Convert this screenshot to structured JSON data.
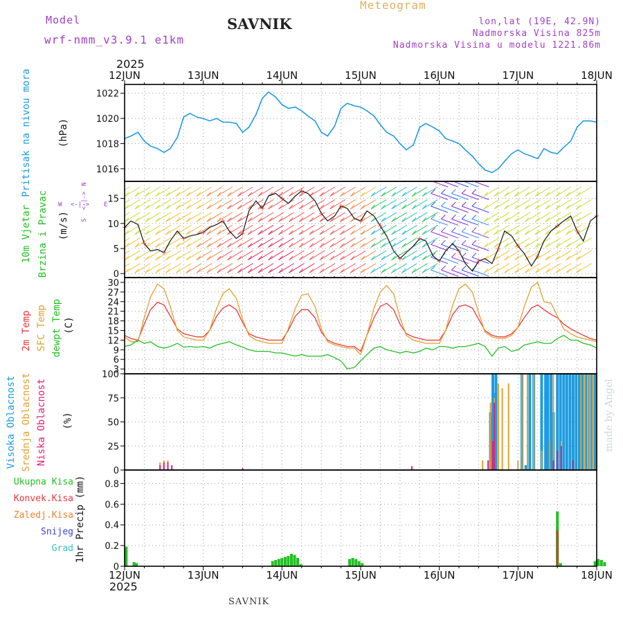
{
  "header": {
    "model_label": "Model",
    "model_name": "wrf-nmm_v3.9.1 e1km",
    "station": "SAVNIK",
    "title": "Meteogram",
    "coords": "lon,lat (19E, 42.9N)",
    "elevation": "Nadmorska Visina 825m",
    "model_elevation": "Nadmorska Visina u modelu 1221.86m",
    "year_top": "2025",
    "year_bottom": "2025",
    "footer_station": "SAVNIK",
    "credit": "made by Angel"
  },
  "colors": {
    "pressure": "#1e9be0",
    "temp2m": "#e8393b",
    "sfc_temp": "#e0a030",
    "dewpt": "#22c022",
    "high_cloud": "#1e9be0",
    "mid_cloud": "#e0a030",
    "low_cloud": "#e0207a",
    "total_precip": "#22c022",
    "conv_precip": "#e8393b",
    "frozen_precip": "#f08030",
    "snow": "#4040e0",
    "hail": "#30c0c0",
    "purple_text": "#a040c8",
    "meteogram": "#e0b060"
  },
  "chart_data": {
    "type": "line",
    "x_axis": {
      "ticks": [
        "12JUN",
        "13JUN",
        "14JUN",
        "15JUN",
        "16JUN",
        "17JUN",
        "18JUN"
      ]
    },
    "panels": {
      "pressure": {
        "label": "Pritisak na nivou mora",
        "unit": "(hPa)",
        "ylim": [
          1015,
          1022.7
        ],
        "yticks": [
          1016,
          1018,
          1020,
          1022
        ],
        "series": [
          {
            "name": "Pritisak na nivou mora",
            "x_days": [
              0,
              0.08,
              0.17,
              0.25,
              0.33,
              0.42,
              0.5,
              0.58,
              0.67,
              0.75,
              0.83,
              0.92,
              1.0,
              1.08,
              1.17,
              1.25,
              1.33,
              1.42,
              1.5,
              1.58,
              1.67,
              1.75,
              1.83,
              1.92,
              2.0,
              2.08,
              2.17,
              2.25,
              2.33,
              2.42,
              2.5,
              2.58,
              2.67,
              2.75,
              2.83,
              2.92,
              3.0,
              3.08,
              3.17,
              3.25,
              3.33,
              3.42,
              3.5,
              3.58,
              3.67,
              3.75,
              3.83,
              3.92,
              4.0,
              4.08,
              4.17,
              4.25,
              4.33,
              4.42,
              4.5,
              4.58,
              4.67,
              4.75,
              4.83,
              4.92,
              5.0,
              5.08,
              5.17,
              5.25,
              5.33,
              5.42,
              5.5,
              5.58,
              5.67,
              5.75,
              5.83,
              5.92,
              6.0
            ],
            "values": [
              1018.4,
              1018.6,
              1018.9,
              1018.2,
              1017.8,
              1017.6,
              1017.3,
              1017.6,
              1018.5,
              1020.1,
              1020.4,
              1020.1,
              1020.0,
              1019.8,
              1020.0,
              1019.7,
              1019.7,
              1019.6,
              1018.9,
              1019.3,
              1020.3,
              1021.6,
              1022.1,
              1021.7,
              1021.1,
              1020.8,
              1020.9,
              1020.6,
              1020.2,
              1019.8,
              1018.9,
              1018.6,
              1019.4,
              1020.8,
              1021.2,
              1021.0,
              1020.9,
              1020.6,
              1020.2,
              1019.5,
              1018.9,
              1018.6,
              1018.0,
              1017.5,
              1017.9,
              1019.3,
              1019.6,
              1019.3,
              1019.0,
              1018.4,
              1018.2,
              1018.0,
              1017.5,
              1017.0,
              1016.4,
              1015.9,
              1015.7,
              1016.0,
              1016.6,
              1017.2,
              1017.5,
              1017.2,
              1017.0,
              1016.8,
              1017.6,
              1017.3,
              1017.2,
              1017.7,
              1018.2,
              1019.3,
              1019.8,
              1019.8,
              1019.7
            ]
          }
        ]
      },
      "wind": {
        "label": "10m Vjetar",
        "label2": "Brzina i Pravac",
        "unit": "(m/s)",
        "ylim": [
          -0.8,
          18.4
        ],
        "yticks": [
          0,
          5,
          10,
          15
        ],
        "compass": {
          "n": "N",
          "s": "S",
          "e": "E",
          "w": "W",
          "arrows": "<-|->"
        },
        "series": [
          {
            "name": "10m Vjetar",
            "x_days": [
              0,
              0.08,
              0.17,
              0.25,
              0.33,
              0.42,
              0.5,
              0.58,
              0.67,
              0.75,
              0.83,
              0.92,
              1.0,
              1.08,
              1.17,
              1.25,
              1.33,
              1.42,
              1.5,
              1.58,
              1.67,
              1.75,
              1.83,
              1.92,
              2.0,
              2.08,
              2.17,
              2.25,
              2.33,
              2.42,
              2.5,
              2.58,
              2.67,
              2.75,
              2.83,
              2.92,
              3.0,
              3.08,
              3.17,
              3.25,
              3.33,
              3.42,
              3.5,
              3.58,
              3.67,
              3.75,
              3.83,
              3.92,
              4.0,
              4.08,
              4.17,
              4.25,
              4.33,
              4.42,
              4.5,
              4.58,
              4.67,
              4.75,
              4.83,
              4.92,
              5.0,
              5.08,
              5.17,
              5.25,
              5.33,
              5.42,
              5.5,
              5.58,
              5.67,
              5.75,
              5.83,
              5.92,
              6.0
            ],
            "values": [
              9.2,
              10.5,
              9.8,
              6.0,
              4.5,
              4.8,
              4.2,
              6.5,
              8.5,
              7.0,
              7.5,
              7.8,
              8.2,
              9.2,
              9.8,
              10.5,
              8.5,
              7.0,
              8.0,
              12.5,
              14.5,
              13.0,
              15.5,
              16.0,
              15.0,
              14.0,
              15.5,
              16.5,
              16.0,
              14.5,
              12.0,
              10.5,
              11.5,
              13.5,
              13.0,
              11.0,
              10.5,
              12.5,
              11.5,
              9.5,
              7.5,
              4.5,
              3.0,
              4.2,
              5.5,
              7.0,
              6.5,
              3.5,
              2.5,
              4.5,
              6.0,
              4.5,
              2.0,
              0.5,
              2.5,
              3.0,
              2.0,
              5.0,
              8.5,
              7.5,
              5.5,
              4.0,
              1.5,
              3.5,
              6.5,
              8.5,
              9.5,
              10.5,
              11.5,
              8.5,
              6.5,
              10.5,
              11.5
            ]
          }
        ]
      },
      "temperature": {
        "labels": [
          "2m Temp",
          "SFC Temp",
          "dewpt Temp"
        ],
        "unit": "(C)",
        "ylim": [
          1.5,
          31.5
        ],
        "yticks": [
          3,
          6,
          9,
          12,
          15,
          18,
          21,
          24,
          27,
          30
        ],
        "x_days": [
          0,
          0.08,
          0.17,
          0.25,
          0.33,
          0.42,
          0.5,
          0.58,
          0.67,
          0.75,
          0.83,
          0.92,
          1.0,
          1.08,
          1.17,
          1.25,
          1.33,
          1.42,
          1.5,
          1.58,
          1.67,
          1.75,
          1.83,
          1.92,
          2.0,
          2.08,
          2.17,
          2.25,
          2.33,
          2.42,
          2.5,
          2.58,
          2.67,
          2.75,
          2.83,
          2.92,
          3.0,
          3.08,
          3.17,
          3.25,
          3.33,
          3.42,
          3.5,
          3.58,
          3.67,
          3.75,
          3.83,
          3.92,
          4.0,
          4.08,
          4.17,
          4.25,
          4.33,
          4.42,
          4.5,
          4.58,
          4.67,
          4.75,
          4.83,
          4.92,
          5.0,
          5.08,
          5.17,
          5.25,
          5.33,
          5.42,
          5.5,
          5.58,
          5.67,
          5.75,
          5.83,
          5.92,
          6.0
        ],
        "series": [
          {
            "name": "2m Temp",
            "values": [
              13.5,
              12.5,
              12.0,
              17.0,
              21.5,
              23.8,
              23.0,
              19.5,
              15.5,
              14.0,
              13.5,
              13.0,
              13.0,
              15.0,
              19.5,
              22.0,
              23.0,
              21.5,
              17.5,
              14.0,
              13.0,
              12.5,
              12.0,
              12.0,
              12.0,
              15.0,
              19.5,
              21.5,
              21.5,
              19.0,
              14.5,
              12.0,
              11.0,
              10.5,
              10.0,
              10.0,
              8.5,
              13.5,
              19.0,
              22.5,
              23.5,
              21.5,
              17.0,
              14.0,
              13.0,
              12.5,
              12.0,
              12.0,
              12.0,
              15.0,
              20.0,
              22.5,
              23.0,
              22.0,
              18.5,
              15.0,
              13.5,
              13.0,
              13.0,
              14.0,
              16.0,
              19.0,
              22.0,
              23.0,
              21.5,
              20.0,
              19.0,
              17.0,
              15.5,
              14.5,
              13.5,
              12.5,
              12.0
            ]
          },
          {
            "name": "SFC Temp",
            "values": [
              13.0,
              11.5,
              11.5,
              19.0,
              25.5,
              29.5,
              28.0,
              22.5,
              15.0,
              13.0,
              12.5,
              12.0,
              12.0,
              15.0,
              22.0,
              26.5,
              28.0,
              25.0,
              18.5,
              13.5,
              12.0,
              11.5,
              11.0,
              11.0,
              11.0,
              15.5,
              22.0,
              26.0,
              26.5,
              22.5,
              15.5,
              11.5,
              10.5,
              10.0,
              9.5,
              9.5,
              7.5,
              13.5,
              22.0,
              27.0,
              29.0,
              26.5,
              19.0,
              13.5,
              12.0,
              11.5,
              11.0,
              11.0,
              11.0,
              15.0,
              23.0,
              28.0,
              29.5,
              27.0,
              20.5,
              14.5,
              13.0,
              12.5,
              12.5,
              13.5,
              16.0,
              22.5,
              28.5,
              30.0,
              24.0,
              23.5,
              19.5,
              15.5,
              14.0,
              13.0,
              12.5,
              12.0,
              11.5
            ]
          },
          {
            "name": "dewpt Temp",
            "values": [
              10.0,
              10.5,
              12.0,
              11.0,
              11.5,
              10.0,
              9.5,
              10.0,
              11.0,
              9.8,
              10.0,
              9.8,
              10.0,
              9.5,
              10.5,
              11.0,
              11.5,
              10.5,
              9.8,
              9.0,
              8.5,
              8.5,
              8.5,
              8.0,
              8.0,
              7.5,
              7.0,
              7.5,
              7.0,
              7.0,
              7.0,
              7.5,
              6.5,
              5.5,
              3.0,
              3.5,
              5.5,
              7.5,
              9.5,
              10.0,
              9.0,
              8.5,
              8.0,
              8.5,
              8.0,
              8.5,
              9.5,
              9.0,
              10.0,
              10.0,
              9.5,
              10.0,
              10.0,
              10.5,
              11.0,
              10.0,
              7.0,
              9.5,
              10.0,
              8.5,
              9.0,
              10.5,
              11.0,
              11.5,
              11.0,
              11.0,
              12.5,
              13.5,
              12.0,
              12.0,
              11.0,
              10.5,
              9.5
            ]
          }
        ]
      },
      "clouds": {
        "labels": [
          "Visoka Oblacnost",
          "Srednja Oblacnost",
          "Niska Oblacnost"
        ],
        "unit": "(%)",
        "ylim": [
          0,
          100
        ],
        "yticks": [
          0,
          25,
          50,
          75,
          100
        ],
        "series": [
          {
            "name": "Visoka Oblacnost",
            "x_days": [
              4.65,
              4.68,
              4.7,
              4.72,
              5.05,
              5.1,
              5.15,
              5.2,
              5.3,
              5.35,
              5.38,
              5.42,
              5.45,
              5.5,
              5.54,
              5.58,
              5.62,
              5.66,
              5.7,
              5.74,
              5.78,
              5.82,
              5.86,
              5.9,
              5.94,
              5.98
            ],
            "values": [
              60,
              100,
              80,
              100,
              100,
              5,
              100,
              100,
              100,
              100,
              100,
              100,
              60,
              100,
              100,
              100,
              100,
              100,
              100,
              100,
              100,
              100,
              100,
              100,
              100,
              100
            ]
          },
          {
            "name": "Srednja Oblacnost",
            "x_days": [
              0.45,
              0.5,
              0.55,
              4.55,
              4.65,
              4.7,
              4.75,
              4.8,
              4.88,
              5.0,
              5.05,
              5.12,
              5.2,
              5.3,
              5.4,
              5.45,
              5.55,
              5.8,
              5.85,
              5.9,
              5.95,
              6.0
            ],
            "values": [
              8,
              10,
              10,
              10,
              70,
              75,
              90,
              85,
              90,
              10,
              100,
              100,
              100,
              20,
              30,
              100,
              30,
              100,
              100,
              100,
              100,
              100
            ]
          },
          {
            "name": "Niska Oblacnost",
            "x_days": [
              0.45,
              0.5,
              0.55,
              0.6,
              1.5,
              3.65,
              4.62,
              4.68,
              4.7,
              5.45,
              5.5,
              5.55,
              5.7
            ],
            "values": [
              5,
              8,
              8,
              5,
              2,
              4,
              10,
              30,
              70,
              10,
              20,
              25,
              10
            ]
          }
        ]
      },
      "precip": {
        "labels": [
          "Ukupna Kisa",
          "Konvek.Kisa",
          "Zaledj.Kisa",
          "Snijeg",
          "Grad"
        ],
        "ylabel": "1hr Precip (mm)",
        "ylim": [
          0,
          0.93
        ],
        "yticks": [
          0,
          0.2,
          0.4,
          0.6,
          0.8
        ],
        "series": [
          {
            "name": "Ukupna Kisa",
            "x_days": [
              0.02,
              0.12,
              0.15,
              1.88,
              1.92,
              1.96,
              2.0,
              2.04,
              2.08,
              2.12,
              2.16,
              2.2,
              2.24,
              2.86,
              2.9,
              2.94,
              2.98,
              3.02,
              5.5,
              5.54,
              5.98,
              6.02,
              6.06,
              6.1
            ],
            "values": [
              0.19,
              0.04,
              0.03,
              0.05,
              0.06,
              0.07,
              0.08,
              0.09,
              0.1,
              0.12,
              0.11,
              0.08,
              0.02,
              0.07,
              0.08,
              0.07,
              0.05,
              0.03,
              0.53,
              0.03,
              0.05,
              0.07,
              0.06,
              0.04
            ]
          },
          {
            "name": "Konvek.Kisa",
            "x_days": [
              5.5
            ],
            "values": [
              0.35
            ]
          }
        ]
      }
    }
  }
}
